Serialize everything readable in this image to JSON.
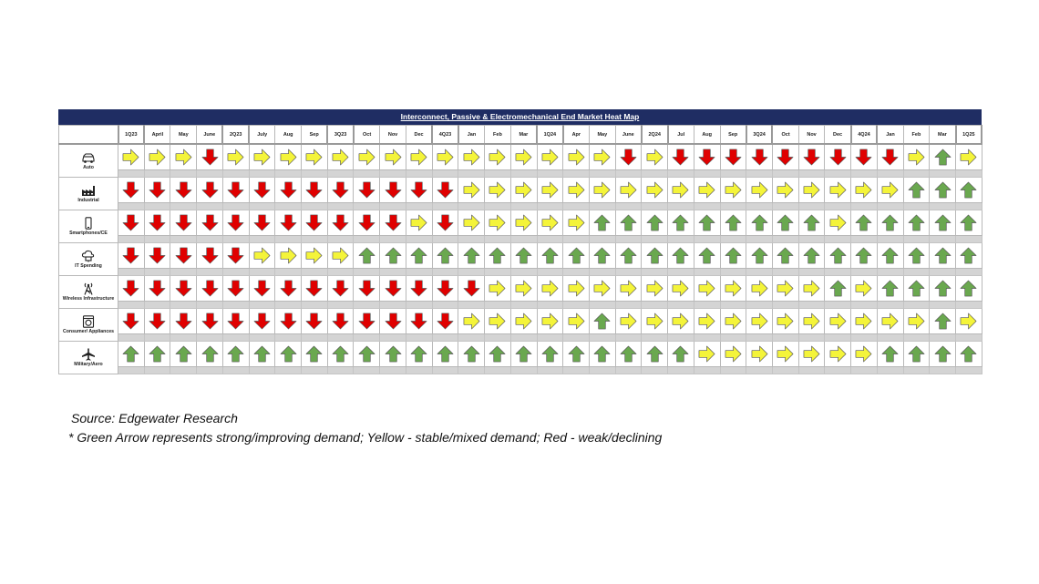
{
  "colors": {
    "title_bar": "#1f2d63",
    "up": "#6aa84f",
    "flat": "#f4f43a",
    "down": "#e00000",
    "separator": "#d4d4d4"
  },
  "chart_data": {
    "type": "heatmap",
    "title": "Interconnect, Passive & Electromechanical End Market Heat Map",
    "value_legend": {
      "up": "Green",
      "flat": "Yellow",
      "down": "Red"
    },
    "columns": [
      "1Q23",
      "April",
      "May",
      "June",
      "2Q23",
      "July",
      "Aug",
      "Sep",
      "3Q23",
      "Oct",
      "Nov",
      "Dec",
      "4Q23",
      "Jan",
      "Feb",
      "Mar",
      "1Q24",
      "Apr",
      "May",
      "June",
      "2Q24",
      "Jul",
      "Aug",
      "Sep",
      "3Q24",
      "Oct",
      "Nov",
      "Dec",
      "4Q24",
      "Jan",
      "Feb",
      "Mar",
      "1Q25"
    ],
    "quarter_columns": [
      "1Q23",
      "2Q23",
      "3Q23",
      "4Q23",
      "1Q24",
      "2Q24",
      "3Q24",
      "4Q24",
      "1Q25"
    ],
    "rows": [
      {
        "label": "Auto",
        "icon": "car-icon",
        "values": [
          "flat",
          "flat",
          "flat",
          "down",
          "flat",
          "flat",
          "flat",
          "flat",
          "flat",
          "flat",
          "flat",
          "flat",
          "flat",
          "flat",
          "flat",
          "flat",
          "flat",
          "flat",
          "flat",
          "down",
          "flat",
          "down",
          "down",
          "down",
          "down",
          "down",
          "down",
          "down",
          "down",
          "down",
          "flat",
          "up",
          "flat"
        ]
      },
      {
        "label": "Industrial",
        "icon": "factory-icon",
        "values": [
          "down",
          "down",
          "down",
          "down",
          "down",
          "down",
          "down",
          "down",
          "down",
          "down",
          "down",
          "down",
          "down",
          "flat",
          "flat",
          "flat",
          "flat",
          "flat",
          "flat",
          "flat",
          "flat",
          "flat",
          "flat",
          "flat",
          "flat",
          "flat",
          "flat",
          "flat",
          "flat",
          "flat",
          "up",
          "up",
          "up"
        ]
      },
      {
        "label": "Smartphones/CE",
        "icon": "smartphone-icon",
        "values": [
          "down",
          "down",
          "down",
          "down",
          "down",
          "down",
          "down",
          "down",
          "down",
          "down",
          "down",
          "flat",
          "down",
          "flat",
          "flat",
          "flat",
          "flat",
          "flat",
          "up",
          "up",
          "up",
          "up",
          "up",
          "up",
          "up",
          "up",
          "up",
          "flat",
          "up",
          "up",
          "up",
          "up",
          "up"
        ]
      },
      {
        "label": "IT Spending",
        "icon": "cloud-computer-icon",
        "values": [
          "down",
          "down",
          "down",
          "down",
          "down",
          "flat",
          "flat",
          "flat",
          "flat",
          "up",
          "up",
          "up",
          "up",
          "up",
          "up",
          "up",
          "up",
          "up",
          "up",
          "up",
          "up",
          "up",
          "up",
          "up",
          "up",
          "up",
          "up",
          "up",
          "up",
          "up",
          "up",
          "up",
          "up"
        ]
      },
      {
        "label": "Wireless Infrastructure",
        "icon": "antenna-tower-icon",
        "values": [
          "down",
          "down",
          "down",
          "down",
          "down",
          "down",
          "down",
          "down",
          "down",
          "down",
          "down",
          "down",
          "down",
          "down",
          "flat",
          "flat",
          "flat",
          "flat",
          "flat",
          "flat",
          "flat",
          "flat",
          "flat",
          "flat",
          "flat",
          "flat",
          "flat",
          "up",
          "flat",
          "up",
          "up",
          "up",
          "up"
        ]
      },
      {
        "label": "Consumer/ Appliances",
        "icon": "washing-machine-icon",
        "values": [
          "down",
          "down",
          "down",
          "down",
          "down",
          "down",
          "down",
          "down",
          "down",
          "down",
          "down",
          "down",
          "down",
          "flat",
          "flat",
          "flat",
          "flat",
          "flat",
          "up",
          "flat",
          "flat",
          "flat",
          "flat",
          "flat",
          "flat",
          "flat",
          "flat",
          "flat",
          "flat",
          "flat",
          "flat",
          "up",
          "flat"
        ]
      },
      {
        "label": "Military/Aero",
        "icon": "airplane-icon",
        "values": [
          "up",
          "up",
          "up",
          "up",
          "up",
          "up",
          "up",
          "up",
          "up",
          "up",
          "up",
          "up",
          "up",
          "up",
          "up",
          "up",
          "up",
          "up",
          "up",
          "up",
          "up",
          "up",
          "flat",
          "flat",
          "flat",
          "flat",
          "flat",
          "flat",
          "flat",
          "up",
          "up",
          "up",
          "up"
        ]
      }
    ]
  },
  "source": "Source: Edgewater Research",
  "note": "* Green Arrow represents strong/improving demand; Yellow - stable/mixed demand; Red - weak/declining"
}
